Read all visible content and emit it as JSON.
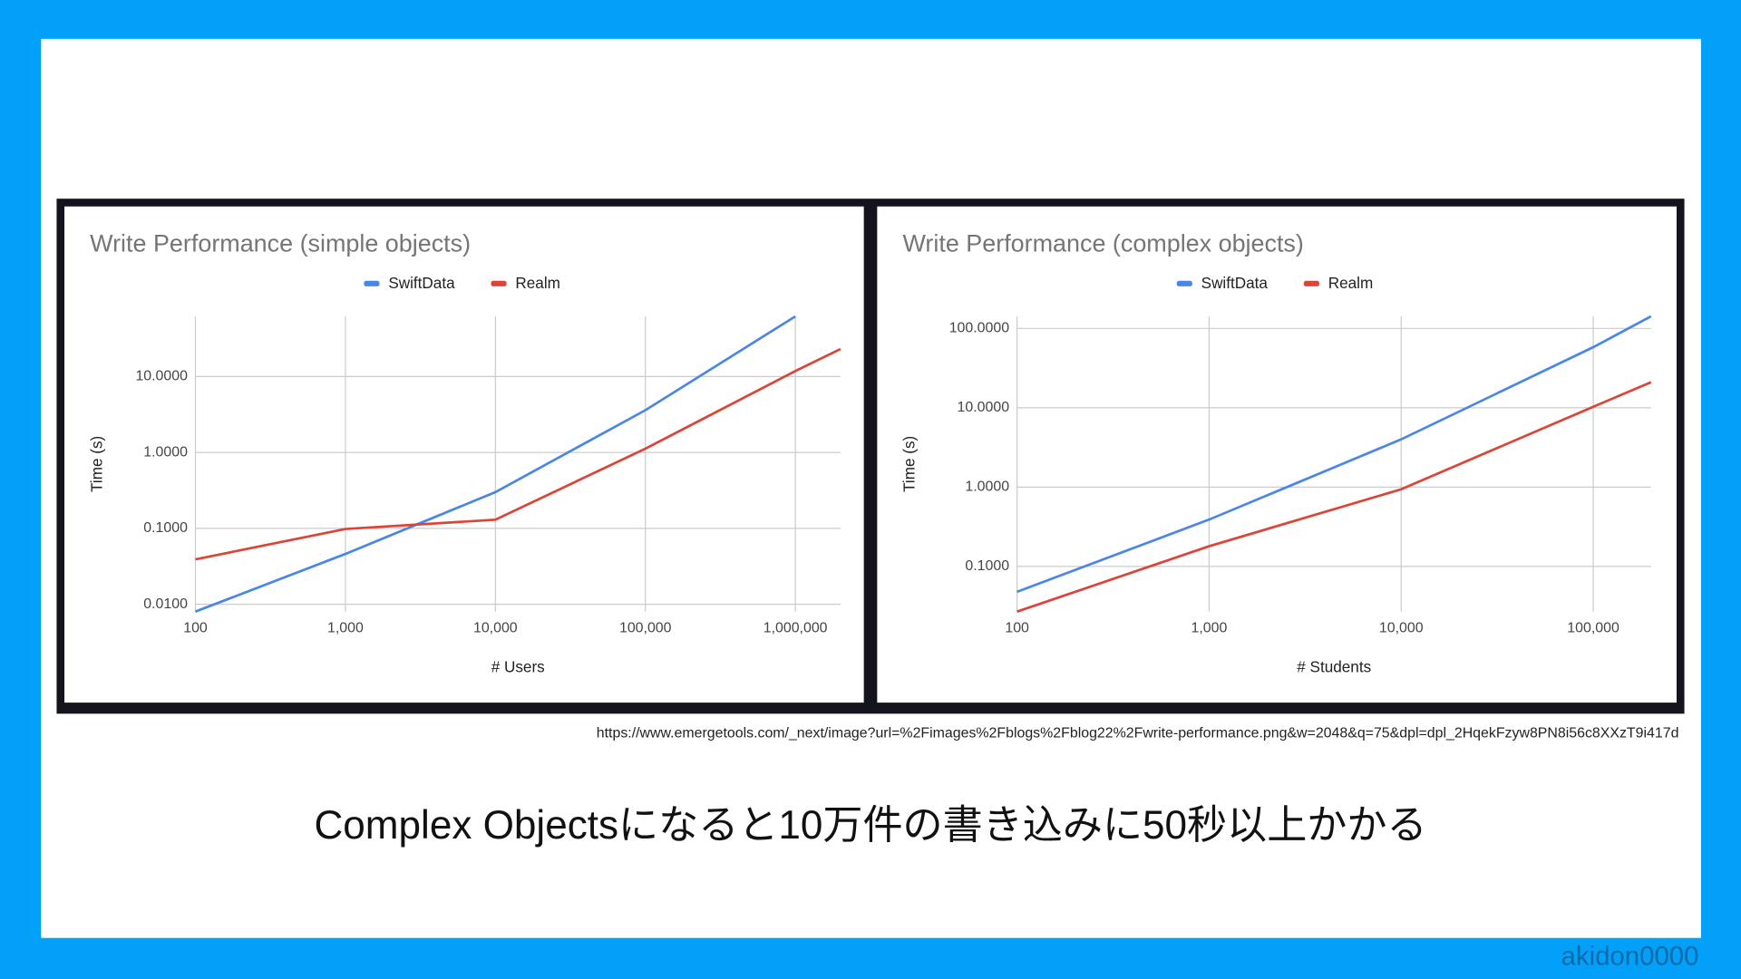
{
  "chart_data": [
    {
      "type": "line",
      "title": "Write Performance (simple objects)",
      "x_label": "# Users",
      "y_label": "Time (s)",
      "x": [
        100,
        1000,
        10000,
        100000,
        1000000,
        2000000
      ],
      "series": [
        {
          "name": "SwiftData",
          "color": "#4a86e8",
          "values": [
            0.008,
            0.046,
            0.3,
            3.6,
            62,
            null
          ]
        },
        {
          "name": "Realm",
          "color": "#db4437",
          "values": [
            0.039,
            0.098,
            0.13,
            1.12,
            11.8,
            23
          ]
        }
      ],
      "xlim": [
        100,
        2000000
      ],
      "ylim": [
        0.008,
        62
      ],
      "xscale": "log",
      "yscale": "log",
      "xticks": [
        100,
        {
          "value": 1000,
          "label": "1,000"
        },
        {
          "value": 10000,
          "label": "10,000"
        },
        {
          "value": 100000,
          "label": "100,000"
        },
        {
          "value": 1000000,
          "label": "1,000,000"
        }
      ],
      "yticks": [
        {
          "value": 0.01,
          "label": "0.0100"
        },
        {
          "value": 0.1,
          "label": "0.1000"
        },
        {
          "value": 1,
          "label": "1.0000"
        },
        {
          "value": 10,
          "label": "10.0000"
        }
      ],
      "grid": true,
      "legend": "top"
    },
    {
      "type": "line",
      "title": "Write Performance (complex objects)",
      "x_label": "# Students",
      "y_label": "Time (s)",
      "x": [
        100,
        1000,
        10000,
        100000,
        200000
      ],
      "series": [
        {
          "name": "SwiftData",
          "color": "#4a86e8",
          "values": [
            0.048,
            0.39,
            4.0,
            58,
            142
          ]
        },
        {
          "name": "Realm",
          "color": "#db4437",
          "values": [
            0.027,
            0.18,
            0.94,
            10.3,
            21
          ]
        }
      ],
      "xlim": [
        100,
        200000
      ],
      "ylim": [
        0.027,
        142
      ],
      "xscale": "log",
      "yscale": "log",
      "xticks": [
        100,
        {
          "value": 1000,
          "label": "1,000"
        },
        {
          "value": 10000,
          "label": "10,000"
        },
        {
          "value": 100000,
          "label": "100,000"
        }
      ],
      "yticks": [
        {
          "value": 0.1,
          "label": "0.1000"
        },
        {
          "value": 1,
          "label": "1.0000"
        },
        {
          "value": 10,
          "label": "10.0000"
        },
        {
          "value": 100,
          "label": "100.0000"
        }
      ],
      "grid": true,
      "legend": "top"
    }
  ],
  "source": "https://www.emergetools.com/_next/image?url=%2Fimages%2Fblogs%2Fblog22%2Fwrite-performance.png&w=2048&q=75&dpl=dpl_2HqekFzyw8PN8i56c8XXzT9i417d",
  "caption": "Complex Objectsになると10万件の書き込みに50秒以上かかる",
  "author": "akidon0000"
}
